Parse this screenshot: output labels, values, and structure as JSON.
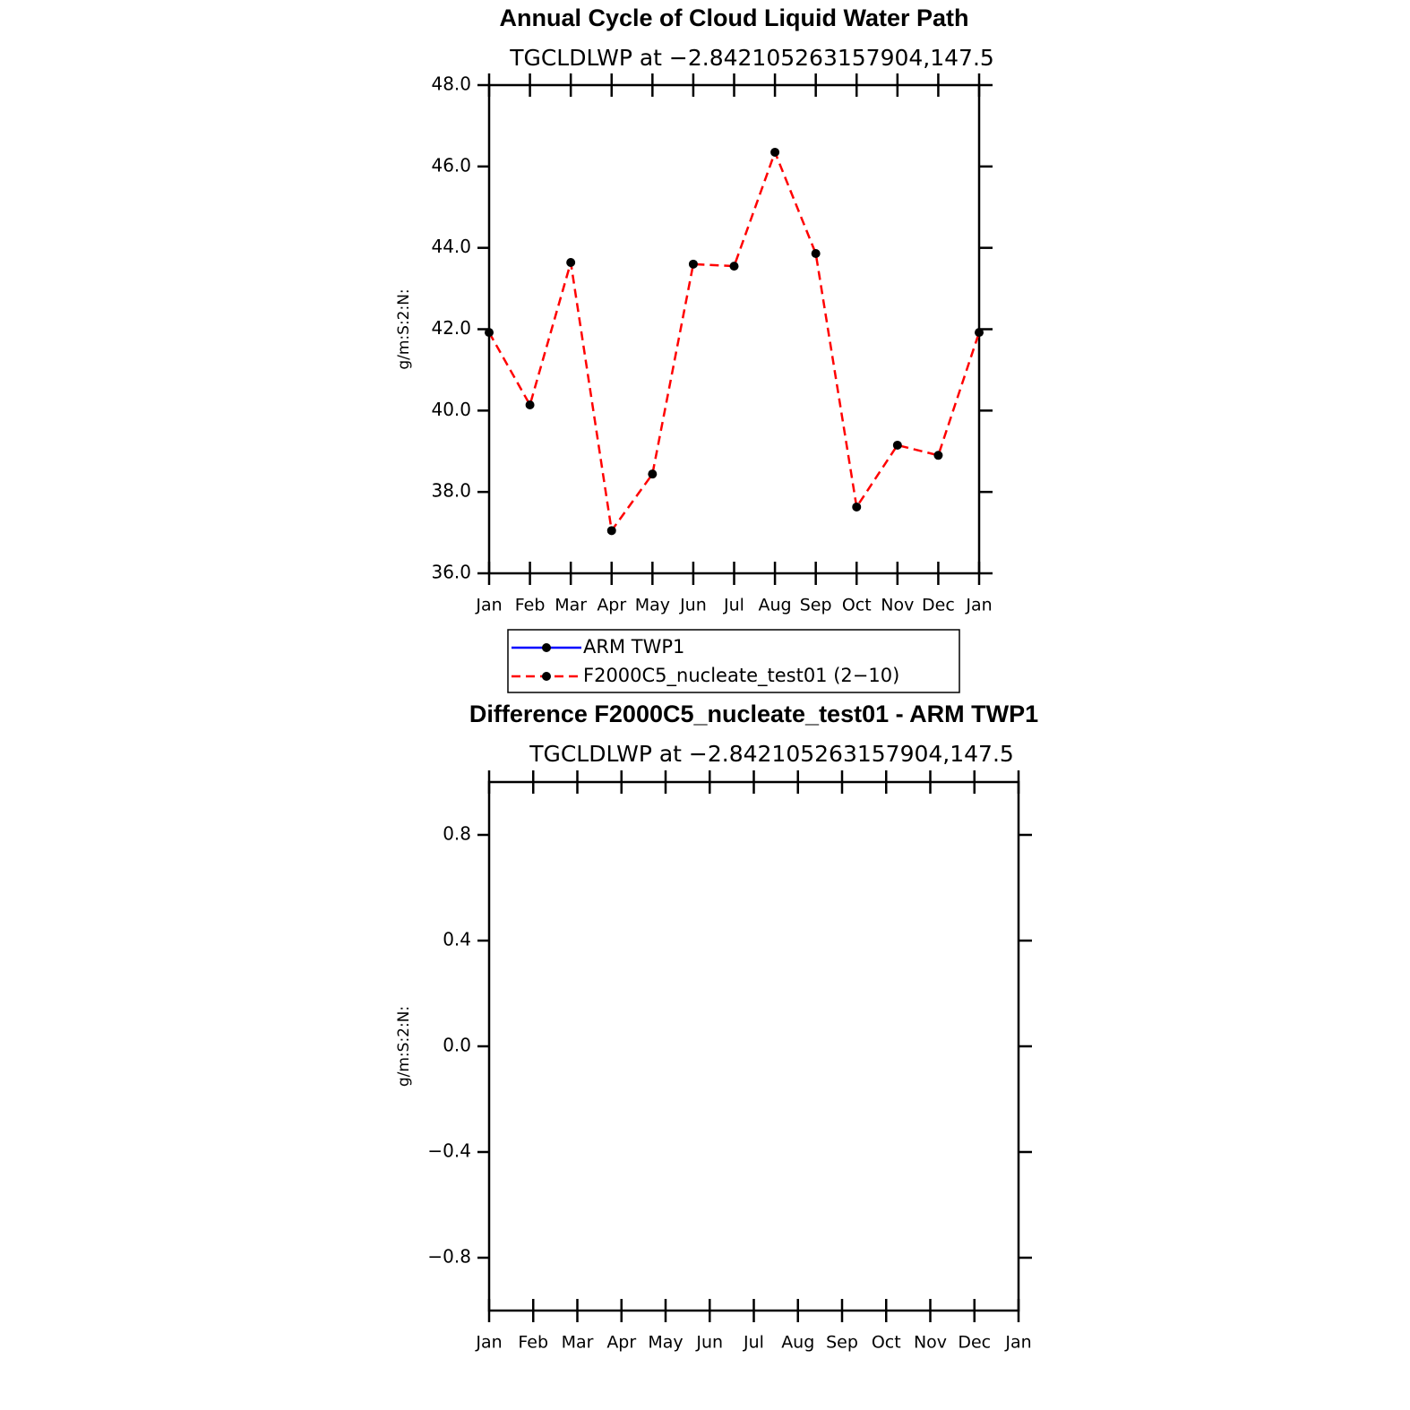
{
  "chart_data": [
    {
      "type": "line",
      "title": "Annual Cycle of Cloud Liquid Water Path",
      "subtitle": "TGCLDLWP at −2.842105263157904,147.5",
      "y_label": "g/m:S:2:N:",
      "categories": [
        "Jan",
        "Feb",
        "Mar",
        "Apr",
        "May",
        "Jun",
        "Jul",
        "Aug",
        "Sep",
        "Oct",
        "Nov",
        "Dec",
        "Jan"
      ],
      "series": [
        {
          "name": "ARM TWP1",
          "color": "#0000ff",
          "dash": false,
          "values": [
            null,
            null,
            null,
            null,
            null,
            null,
            null,
            null,
            null,
            null,
            null,
            null,
            null
          ]
        },
        {
          "name": "F2000C5_nucleate_test01 (2−10)",
          "color": "#ff0000",
          "dash": true,
          "values": [
            41.92,
            40.14,
            43.64,
            37.05,
            38.44,
            43.6,
            43.55,
            46.35,
            43.86,
            37.63,
            39.15,
            38.9,
            41.92
          ]
        }
      ],
      "ylim": [
        36,
        48
      ],
      "yticks": [
        {
          "value": 36,
          "label": "36.0"
        },
        {
          "value": 38,
          "label": "38.0"
        },
        {
          "value": 40,
          "label": "40.0"
        },
        {
          "value": 42,
          "label": "42.0"
        },
        {
          "value": 44,
          "label": "44.0"
        },
        {
          "value": 46,
          "label": "46.0"
        },
        {
          "value": 48,
          "label": "48.0"
        }
      ],
      "legend": true
    },
    {
      "type": "line",
      "title": "Difference F2000C5_nucleate_test01 - ARM TWP1",
      "subtitle": "TGCLDLWP at −2.842105263157904,147.5",
      "y_label": "g/m:S:2:N:",
      "categories": [
        "Jan",
        "Feb",
        "Mar",
        "Apr",
        "May",
        "Jun",
        "Jul",
        "Aug",
        "Sep",
        "Oct",
        "Nov",
        "Dec",
        "Jan"
      ],
      "series": [],
      "ylim": [
        -1,
        1
      ],
      "yticks": [
        {
          "value": -0.8,
          "label": "−0.8"
        },
        {
          "value": -0.4,
          "label": "−0.4"
        },
        {
          "value": 0,
          "label": "0.0"
        },
        0.4,
        0.8
      ],
      "legend": false
    }
  ]
}
